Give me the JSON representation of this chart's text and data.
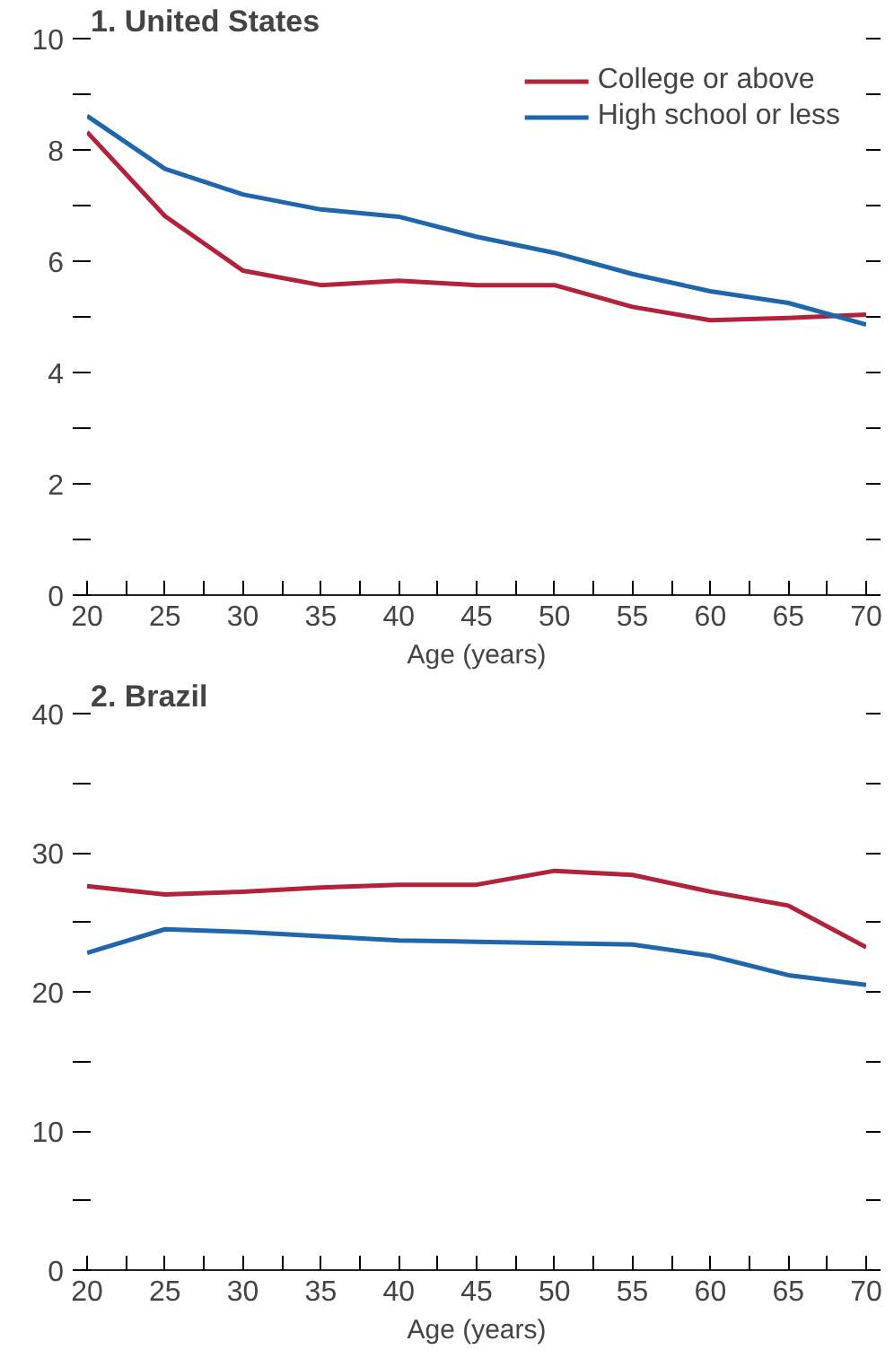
{
  "chart_data": [
    {
      "type": "line",
      "title": "1. United States",
      "xlabel": "Age (years)",
      "x": [
        20,
        25,
        30,
        35,
        40,
        45,
        50,
        55,
        60,
        65,
        70
      ],
      "series": [
        {
          "name": "College or above",
          "color": "#b2223a",
          "values": [
            8.32,
            6.81,
            5.83,
            5.57,
            5.65,
            5.57,
            5.57,
            5.18,
            4.94,
            4.98,
            5.04
          ]
        },
        {
          "name": "High school or less",
          "color": "#1f66ad",
          "values": [
            8.61,
            7.66,
            7.2,
            6.93,
            6.8,
            6.44,
            6.15,
            5.77,
            5.46,
            5.25,
            4.86
          ]
        }
      ],
      "xlim": [
        20,
        70
      ],
      "xticks": [
        20,
        {
          "value": 22.5,
          "label": null
        },
        25,
        {
          "value": 27.5,
          "label": null
        },
        30,
        {
          "value": 32.5,
          "label": null
        },
        35,
        {
          "value": 37.5,
          "label": null
        },
        40,
        {
          "value": 42.5,
          "label": null
        },
        45,
        {
          "value": 47.5,
          "label": null
        },
        50,
        {
          "value": 52.5,
          "label": null
        },
        55,
        {
          "value": 57.5,
          "label": null
        },
        60,
        {
          "value": 62.5,
          "label": null
        },
        65,
        {
          "value": 67.5,
          "label": null
        },
        70
      ],
      "ylim": [
        0,
        10
      ],
      "yticks": [
        0,
        {
          "value": 1,
          "label": null
        },
        2,
        {
          "value": 3,
          "label": null
        },
        4,
        {
          "value": 5,
          "label": null
        },
        6,
        {
          "value": 7,
          "label": null
        },
        8,
        {
          "value": 9,
          "label": null
        },
        10
      ],
      "grid": false,
      "legend": "top right"
    },
    {
      "type": "line",
      "title": "2. Brazil",
      "xlabel": "Age (years)",
      "x": [
        20,
        25,
        30,
        35,
        40,
        45,
        50,
        55,
        60,
        65,
        70
      ],
      "series": [
        {
          "color": "#b2223a",
          "values": [
            27.6,
            27.0,
            27.2,
            27.5,
            27.7,
            27.7,
            28.7,
            28.4,
            27.2,
            26.2,
            23.2
          ]
        },
        {
          "color": "#1f66ad",
          "values": [
            22.8,
            24.5,
            24.3,
            24.0,
            23.7,
            23.6,
            23.5,
            23.4,
            22.6,
            21.2,
            20.5
          ]
        }
      ],
      "xlim": [
        20,
        70
      ],
      "xticks": [
        20,
        {
          "value": 22.5,
          "label": null
        },
        25,
        {
          "value": 27.5,
          "label": null
        },
        30,
        {
          "value": 32.5,
          "label": null
        },
        35,
        {
          "value": 37.5,
          "label": null
        },
        40,
        {
          "value": 42.5,
          "label": null
        },
        45,
        {
          "value": 47.5,
          "label": null
        },
        50,
        {
          "value": 52.5,
          "label": null
        },
        55,
        {
          "value": 57.5,
          "label": null
        },
        60,
        {
          "value": 62.5,
          "label": null
        },
        65,
        {
          "value": 67.5,
          "label": null
        },
        70
      ],
      "ylim": [
        0,
        40
      ],
      "yticks": [
        0,
        {
          "value": 5,
          "label": null
        },
        10,
        {
          "value": 15,
          "label": null
        },
        20,
        {
          "value": 25,
          "label": null
        },
        30,
        {
          "value": 35,
          "label": null
        },
        40
      ],
      "grid": false
    }
  ]
}
